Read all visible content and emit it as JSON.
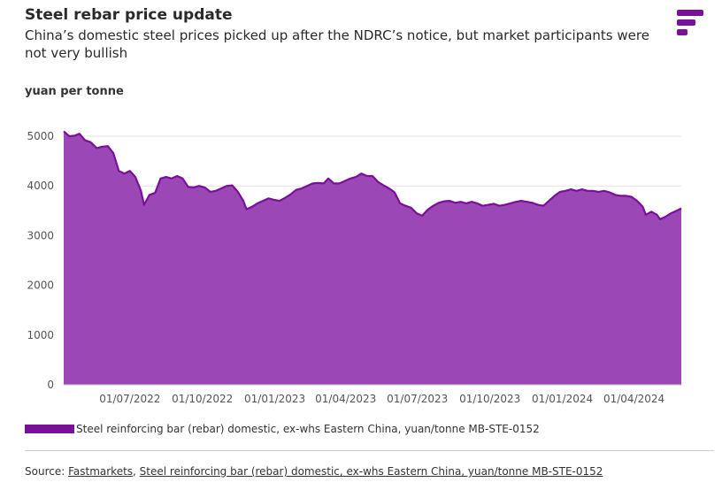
{
  "header": {
    "title": "Steel rebar price update",
    "subtitle": "China’s domestic steel prices picked up after the NDRC’s notice, but market participants were not very bullish"
  },
  "logo": {
    "icon": "brand-logo-icon",
    "color": "#7a0f9a"
  },
  "source": {
    "prefix": "Source: ",
    "link1": "Fastmarkets",
    "separator": ", ",
    "link2": "Steel reinforcing bar (rebar) domestic, ex-whs Eastern China, yuan/tonne MB-STE-0152"
  },
  "chart_data": {
    "type": "area",
    "ylabel": "yuan per tonne",
    "xlabel": "",
    "ylim": [
      0,
      5000
    ],
    "yticks": [
      "0",
      "1000",
      "2000",
      "3000",
      "4000",
      "5000"
    ],
    "xticks": [
      "01/07/2022",
      "01/10/2022",
      "01/01/2023",
      "01/04/2023",
      "01/07/2023",
      "01/10/2023",
      "01/01/2024",
      "01/04/2024"
    ],
    "grid": "horizontal",
    "legend_position": "bottom-left",
    "fill_color": "#9b47b5",
    "line_color": "#7a0f9a",
    "series": [
      {
        "name": "Steel reinforcing bar (rebar) domestic, ex-whs Eastern China, yuan/tonne MB-STE-0152",
        "points": [
          [
            "2022-04-08",
            5100
          ],
          [
            "2022-04-15",
            5000
          ],
          [
            "2022-04-22",
            5010
          ],
          [
            "2022-04-28",
            5050
          ],
          [
            "2022-05-05",
            4920
          ],
          [
            "2022-05-12",
            4880
          ],
          [
            "2022-05-20",
            4760
          ],
          [
            "2022-05-27",
            4790
          ],
          [
            "2022-06-03",
            4800
          ],
          [
            "2022-06-10",
            4660
          ],
          [
            "2022-06-17",
            4300
          ],
          [
            "2022-06-24",
            4250
          ],
          [
            "2022-07-01",
            4300
          ],
          [
            "2022-07-08",
            4180
          ],
          [
            "2022-07-15",
            3900
          ],
          [
            "2022-07-19",
            3620
          ],
          [
            "2022-07-26",
            3820
          ],
          [
            "2022-08-02",
            3860
          ],
          [
            "2022-08-09",
            4150
          ],
          [
            "2022-08-16",
            4180
          ],
          [
            "2022-08-23",
            4150
          ],
          [
            "2022-08-30",
            4200
          ],
          [
            "2022-09-06",
            4150
          ],
          [
            "2022-09-13",
            3980
          ],
          [
            "2022-09-20",
            3970
          ],
          [
            "2022-09-27",
            4000
          ],
          [
            "2022-10-04",
            3970
          ],
          [
            "2022-10-11",
            3880
          ],
          [
            "2022-10-18",
            3900
          ],
          [
            "2022-10-25",
            3950
          ],
          [
            "2022-11-01",
            4000
          ],
          [
            "2022-11-08",
            4010
          ],
          [
            "2022-11-15",
            3880
          ],
          [
            "2022-11-22",
            3700
          ],
          [
            "2022-11-26",
            3530
          ],
          [
            "2022-12-03",
            3580
          ],
          [
            "2022-12-10",
            3650
          ],
          [
            "2022-12-17",
            3700
          ],
          [
            "2022-12-24",
            3750
          ],
          [
            "2022-12-31",
            3720
          ],
          [
            "2023-01-07",
            3700
          ],
          [
            "2023-01-14",
            3760
          ],
          [
            "2023-01-21",
            3830
          ],
          [
            "2023-01-28",
            3920
          ],
          [
            "2023-02-04",
            3950
          ],
          [
            "2023-02-11",
            4000
          ],
          [
            "2023-02-18",
            4050
          ],
          [
            "2023-02-25",
            4060
          ],
          [
            "2023-03-04",
            4050
          ],
          [
            "2023-03-10",
            4150
          ],
          [
            "2023-03-17",
            4050
          ],
          [
            "2023-03-24",
            4050
          ],
          [
            "2023-03-31",
            4100
          ],
          [
            "2023-04-07",
            4150
          ],
          [
            "2023-04-14",
            4180
          ],
          [
            "2023-04-21",
            4250
          ],
          [
            "2023-04-28",
            4200
          ],
          [
            "2023-05-05",
            4200
          ],
          [
            "2023-05-12",
            4080
          ],
          [
            "2023-05-19",
            4010
          ],
          [
            "2023-05-26",
            3950
          ],
          [
            "2023-06-02",
            3870
          ],
          [
            "2023-06-09",
            3650
          ],
          [
            "2023-06-16",
            3600
          ],
          [
            "2023-06-23",
            3560
          ],
          [
            "2023-06-30",
            3450
          ],
          [
            "2023-07-07",
            3400
          ],
          [
            "2023-07-14",
            3520
          ],
          [
            "2023-07-21",
            3600
          ],
          [
            "2023-07-28",
            3660
          ],
          [
            "2023-08-04",
            3690
          ],
          [
            "2023-08-11",
            3700
          ],
          [
            "2023-08-18",
            3660
          ],
          [
            "2023-08-25",
            3680
          ],
          [
            "2023-09-01",
            3650
          ],
          [
            "2023-09-08",
            3680
          ],
          [
            "2023-09-15",
            3650
          ],
          [
            "2023-09-22",
            3600
          ],
          [
            "2023-09-29",
            3620
          ],
          [
            "2023-10-06",
            3640
          ],
          [
            "2023-10-13",
            3600
          ],
          [
            "2023-10-20",
            3620
          ],
          [
            "2023-10-27",
            3650
          ],
          [
            "2023-11-03",
            3680
          ],
          [
            "2023-11-10",
            3700
          ],
          [
            "2023-11-17",
            3680
          ],
          [
            "2023-11-24",
            3660
          ],
          [
            "2023-12-01",
            3620
          ],
          [
            "2023-12-08",
            3600
          ],
          [
            "2023-12-15",
            3700
          ],
          [
            "2023-12-22",
            3800
          ],
          [
            "2023-12-29",
            3880
          ],
          [
            "2024-01-05",
            3900
          ],
          [
            "2024-01-12",
            3930
          ],
          [
            "2024-01-19",
            3900
          ],
          [
            "2024-01-26",
            3930
          ],
          [
            "2024-02-02",
            3900
          ],
          [
            "2024-02-09",
            3900
          ],
          [
            "2024-02-16",
            3880
          ],
          [
            "2024-02-23",
            3900
          ],
          [
            "2024-03-01",
            3870
          ],
          [
            "2024-03-08",
            3820
          ],
          [
            "2024-03-15",
            3800
          ],
          [
            "2024-03-22",
            3800
          ],
          [
            "2024-03-29",
            3780
          ],
          [
            "2024-04-05",
            3700
          ],
          [
            "2024-04-12",
            3580
          ],
          [
            "2024-04-16",
            3420
          ],
          [
            "2024-04-23",
            3480
          ],
          [
            "2024-04-30",
            3420
          ],
          [
            "2024-05-04",
            3330
          ],
          [
            "2024-05-11",
            3380
          ],
          [
            "2024-05-18",
            3450
          ],
          [
            "2024-05-25",
            3500
          ],
          [
            "2024-05-31",
            3550
          ]
        ]
      }
    ]
  }
}
